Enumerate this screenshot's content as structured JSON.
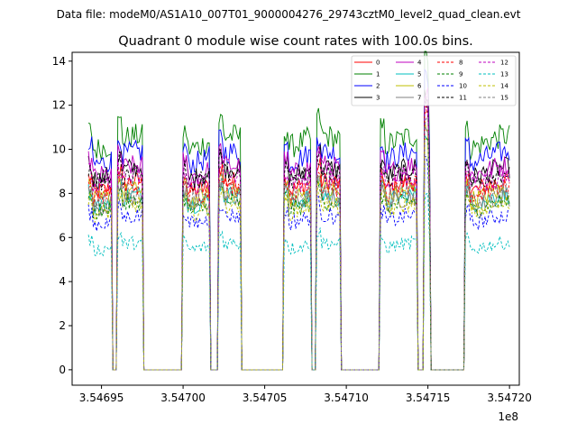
{
  "chart_data": {
    "type": "line",
    "suptitle": "Data file: modeM0/AS1A10_007T01_9000004276_29743cztM0_level2_quad_clean.evt",
    "title": "Quadrant 0 module wise count rates with 100.0s bins.",
    "xlabel": "",
    "ylabel": "",
    "x_offset_label": "1e8",
    "xlim": [
      354693200,
      354720600
    ],
    "ylim": [
      -0.7,
      14.4
    ],
    "xticks": [
      354695000,
      354700000,
      354705000,
      354710000,
      354715000,
      354720000
    ],
    "xtick_labels": [
      "3.54695",
      "3.54700",
      "3.54705",
      "3.54710",
      "3.54715",
      "3.54720"
    ],
    "yticks": [
      0,
      2,
      4,
      6,
      8,
      10,
      12,
      14
    ],
    "ytick_labels": [
      "0",
      "2",
      "4",
      "6",
      "8",
      "10",
      "12",
      "14"
    ],
    "legend_position": "upper-right",
    "segments": [
      {
        "start": 354694200,
        "end": 354695600
      },
      {
        "start": 354696000,
        "end": 354697500
      },
      {
        "start": 354700000,
        "end": 354701600
      },
      {
        "start": 354702200,
        "end": 354703500
      },
      {
        "start": 354706200,
        "end": 354707800
      },
      {
        "start": 354708200,
        "end": 354709600
      },
      {
        "start": 354712100,
        "end": 354714300
      },
      {
        "start": 354714800,
        "end": 354715100
      },
      {
        "start": 354717300,
        "end": 354720000
      }
    ],
    "gap_value": 0,
    "series": [
      {
        "name": "0",
        "color": "#ff0000",
        "dash": "solid",
        "mean": 8.3
      },
      {
        "name": "1",
        "color": "#008000",
        "dash": "solid",
        "mean": 10.3
      },
      {
        "name": "2",
        "color": "#0000ff",
        "dash": "solid",
        "mean": 9.6
      },
      {
        "name": "3",
        "color": "#000000",
        "dash": "solid",
        "mean": 8.9
      },
      {
        "name": "4",
        "color": "#bf00bf",
        "dash": "solid",
        "mean": 9.0
      },
      {
        "name": "5",
        "color": "#00bfbf",
        "dash": "solid",
        "mean": 7.7
      },
      {
        "name": "6",
        "color": "#bfbf00",
        "dash": "solid",
        "mean": 7.9
      },
      {
        "name": "7",
        "color": "#808080",
        "dash": "solid",
        "mean": 7.6
      },
      {
        "name": "8",
        "color": "#ff0000",
        "dash": "dashed",
        "mean": 8.1
      },
      {
        "name": "9",
        "color": "#008000",
        "dash": "dashed",
        "mean": 7.4
      },
      {
        "name": "10",
        "color": "#0000ff",
        "dash": "dashed",
        "mean": 6.8
      },
      {
        "name": "11",
        "color": "#000000",
        "dash": "dashed",
        "mean": 8.7
      },
      {
        "name": "12",
        "color": "#bf00bf",
        "dash": "dashed",
        "mean": 8.5
      },
      {
        "name": "13",
        "color": "#00bfbf",
        "dash": "dashed",
        "mean": 5.6
      },
      {
        "name": "14",
        "color": "#bfbf00",
        "dash": "dashed",
        "mean": 7.3
      },
      {
        "name": "15",
        "color": "#808080",
        "dash": "dashed",
        "mean": 7.9
      }
    ]
  }
}
